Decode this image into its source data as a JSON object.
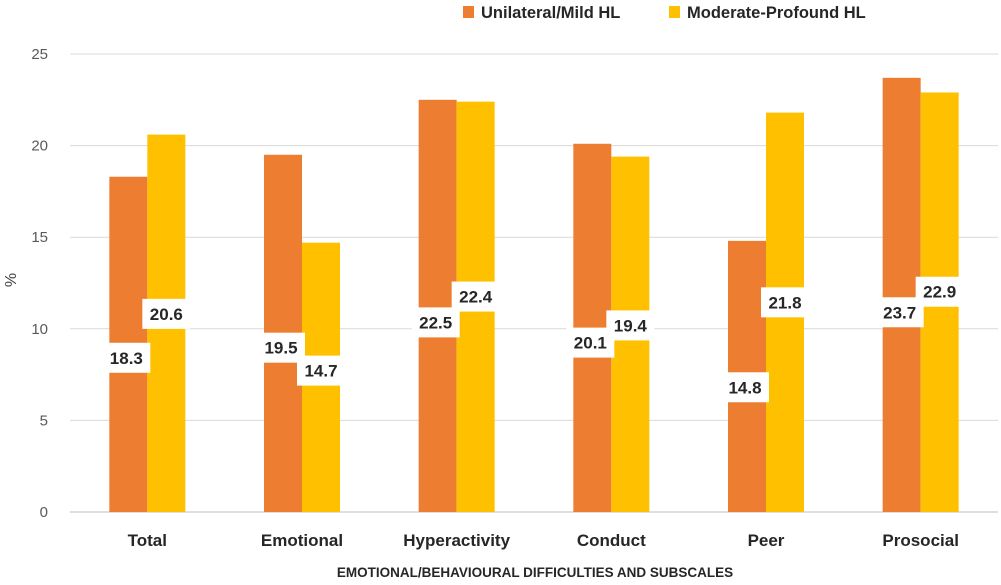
{
  "chart_data": {
    "type": "bar",
    "title": "",
    "xlabel": "EMOTIONAL/BEHAVIOURAL DIFFICULTIES AND SUBSCALES",
    "ylabel": "%",
    "ylim": [
      0,
      25
    ],
    "yticks": [
      0,
      5,
      10,
      15,
      20,
      25
    ],
    "grid": true,
    "legend_position": "top-right",
    "categories": [
      "Total",
      "Emotional",
      "Hyperactivity",
      "Conduct",
      "Peer",
      "Prosocial"
    ],
    "series": [
      {
        "name": "Unilateral/Mild HL",
        "color": "#ED7D31",
        "values": [
          18.3,
          19.5,
          22.5,
          20.1,
          14.8,
          23.7
        ],
        "labels": [
          "18.3",
          "19.5",
          "22.5",
          "20.1",
          "14.8",
          "23.7"
        ]
      },
      {
        "name": "Moderate-Profound HL",
        "color": "#FFC000",
        "values": [
          20.6,
          14.7,
          22.4,
          19.4,
          21.8,
          22.9
        ],
        "labels": [
          "20.6",
          "14.7",
          "22.4",
          "19.4",
          "21.8",
          "22.9"
        ]
      }
    ]
  }
}
